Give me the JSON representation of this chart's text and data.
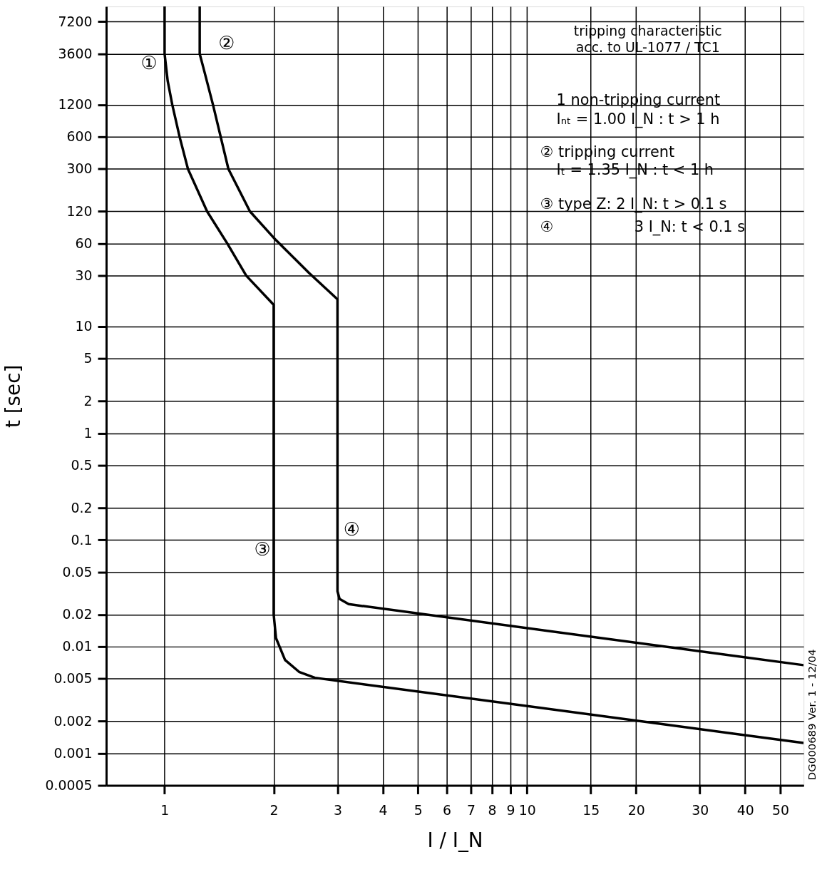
{
  "chart_data": {
    "type": "line",
    "xlabel": "I / I_N",
    "ylabel": "t [sec]",
    "xlim": [
      0.69,
      58
    ],
    "ylim": [
      0.0005,
      10000
    ],
    "xticks": [
      1,
      2,
      3,
      4,
      5,
      6,
      7,
      8,
      9,
      10,
      15,
      20,
      30,
      40,
      50
    ],
    "yticks": [
      7200,
      3600,
      1200,
      600,
      300,
      120,
      60,
      30,
      10,
      5,
      2,
      1,
      0.5,
      0.2,
      0.1,
      0.05,
      0.02,
      0.01,
      0.005,
      0.002,
      0.001,
      0.0005
    ],
    "log": "xy",
    "grid": true,
    "legend": false,
    "marker": "none",
    "line_style": "solid",
    "series": [
      {
        "color": "#000000",
        "x": [
          1.0,
          1.0,
          1.02,
          1.05,
          1.1,
          1.16,
          1.31,
          1.49,
          1.68,
          2.0,
          2.0,
          2.03,
          2.15,
          2.35,
          2.6,
          58
        ],
        "values": [
          10000,
          3600,
          2000,
          1200,
          600,
          300,
          120,
          60,
          30,
          16,
          0.02,
          0.012,
          0.0075,
          0.0058,
          0.0051,
          0.00125
        ]
      },
      {
        "color": "#000000",
        "x": [
          1.25,
          1.25,
          1.29,
          1.36,
          1.5,
          1.72,
          2.0,
          2.5,
          3.0,
          3.0,
          3.04,
          3.22,
          58
        ],
        "values": [
          10000,
          3600,
          2400,
          1200,
          300,
          120,
          68,
          32,
          18,
          0.033,
          0.028,
          0.025,
          0.0067
        ]
      }
    ],
    "annotations": [
      "tripping characteristic\nacc. to UL-1077 / TC1",
      "1  non-tripping current",
      "Iₙₜ = 1.00 I_N : t > 1 h",
      "② tripping current",
      "Iₜ = 1.35 I_N : t < 1 h",
      "③ type Z:  2 I_N: t > 0.1 s",
      "④",
      "3 I_N: t < 0.1 s",
      "DG000689  Ver. 1 - 12/04",
      "②",
      {
        "text": "①",
        "x": 1.0,
        "y": 3600
      },
      {
        "text": "③",
        "x": 2.0,
        "y": 0.1
      },
      {
        "text": "④",
        "x": 3.0,
        "y": 0.1
      }
    ]
  }
}
